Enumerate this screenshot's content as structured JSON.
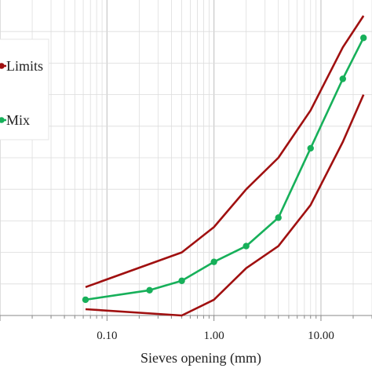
{
  "chart_data": {
    "type": "line",
    "xscale": "log",
    "xlabel": "Sieves opening (mm)",
    "ylabel": "",
    "xlim": [
      0.01,
      30
    ],
    "ylim": [
      0,
      100
    ],
    "grid": true,
    "x_tick_labels": [
      {
        "value": 0.1,
        "label": "0.10"
      },
      {
        "value": 1,
        "label": "1.00"
      },
      {
        "value": 10,
        "label": "10.00"
      }
    ],
    "legend": {
      "placement": "top-left",
      "entries": [
        {
          "label": "Limits",
          "color": "#a01010"
        },
        {
          "label": "Mix",
          "color": "#17b05a"
        }
      ]
    },
    "series": [
      {
        "name": "Limits",
        "color": "#a01010",
        "marker": false,
        "x": [
          0.063,
          0.5,
          1,
          2,
          4,
          8,
          16,
          25
        ],
        "y": [
          9,
          20,
          28,
          40,
          50,
          65,
          85,
          95
        ]
      },
      {
        "name": "Limits",
        "color": "#a01010",
        "marker": false,
        "x": [
          0.063,
          0.5,
          1,
          2,
          4,
          8,
          16,
          25
        ],
        "y": [
          2,
          0,
          5,
          15,
          22,
          35,
          55,
          70
        ]
      },
      {
        "name": "Mix",
        "color": "#17b05a",
        "marker": true,
        "x": [
          0.063,
          0.25,
          0.5,
          1,
          2,
          4,
          8,
          16,
          25
        ],
        "y": [
          5,
          8,
          11,
          17,
          22,
          31,
          53,
          75,
          88
        ]
      }
    ]
  }
}
